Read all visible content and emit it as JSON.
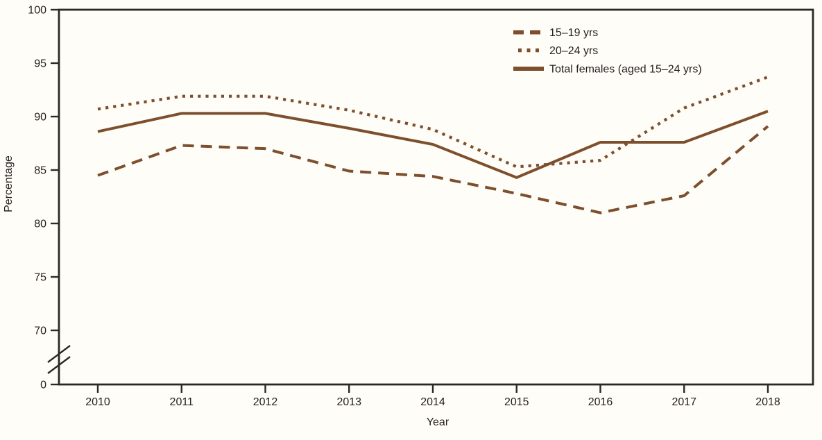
{
  "chart_data": {
    "type": "line",
    "title": "",
    "xlabel": "Year",
    "ylabel": "Percentage",
    "x": [
      2010,
      2011,
      2012,
      2013,
      2014,
      2015,
      2016,
      2017,
      2018
    ],
    "y_ticks": [
      100,
      95,
      90,
      85,
      80,
      75,
      70
    ],
    "y_zero_label": "0",
    "y_axis_break": true,
    "ylim_displayed": [
      70,
      100
    ],
    "grid": false,
    "legend_position": "top-right-inside",
    "series": [
      {
        "name": "15–19 yrs",
        "style": "dashed",
        "values": [
          84.5,
          87.3,
          87.0,
          84.9,
          84.4,
          82.8,
          81.0,
          82.6,
          89.1
        ]
      },
      {
        "name": "20–24 yrs",
        "style": "dotted",
        "values": [
          90.7,
          91.9,
          91.9,
          90.6,
          88.8,
          85.3,
          85.9,
          90.8,
          93.7
        ]
      },
      {
        "name": "Total females (aged 15–24 yrs)",
        "style": "solid",
        "values": [
          88.6,
          90.3,
          90.3,
          88.9,
          87.4,
          84.3,
          87.6,
          87.6,
          90.5
        ]
      }
    ],
    "colors": {
      "line": "#7d4f2d",
      "text": "#231f20",
      "axis": "#2b2926",
      "background": "#fffdf8"
    }
  }
}
